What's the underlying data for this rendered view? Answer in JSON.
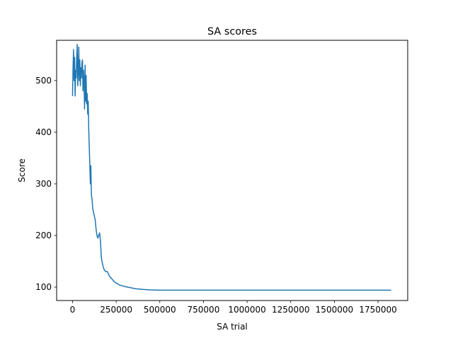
{
  "chart_data": {
    "type": "line",
    "title": "SA scores",
    "xlabel": "SA trial",
    "ylabel": "Score",
    "xlim": [
      -91000,
      1920000
    ],
    "ylim": [
      74,
      578
    ],
    "xticks": [
      0,
      250000,
      500000,
      750000,
      1000000,
      1250000,
      1500000,
      1750000
    ],
    "yticks": [
      100,
      200,
      300,
      400,
      500
    ],
    "grid": false,
    "line_color": "#1f77b4",
    "series": [
      {
        "x": [
          0,
          3000,
          6000,
          9000,
          12000,
          15000,
          18000,
          21000,
          24000,
          27000,
          30000,
          33000,
          36000,
          39000,
          42000,
          45000,
          48000,
          51000,
          54000,
          57000,
          60000,
          63000,
          66000,
          69000,
          72000,
          75000,
          78000,
          81000,
          84000,
          87000,
          90000,
          93000,
          96000,
          99000,
          102000,
          105000,
          108000,
          112000,
          116000,
          120000,
          125000,
          130000,
          135000,
          140000,
          145000,
          150000,
          155000,
          160000,
          165000,
          170000,
          175000,
          180000,
          185000,
          190000,
          200000,
          210000,
          220000,
          230000,
          240000,
          250000,
          260000,
          270000,
          280000,
          300000,
          330000,
          360000,
          400000,
          450000,
          500000,
          600000,
          800000,
          1000000,
          1250000,
          1500000,
          1700000,
          1825000
        ],
        "y": [
          470,
          525,
          560,
          500,
          545,
          470,
          520,
          505,
          545,
          570,
          490,
          520,
          565,
          500,
          540,
          490,
          525,
          505,
          535,
          540,
          480,
          520,
          500,
          445,
          530,
          460,
          510,
          455,
          475,
          435,
          460,
          405,
          370,
          340,
          300,
          335,
          280,
          270,
          252,
          245,
          238,
          230,
          212,
          200,
          195,
          200,
          205,
          190,
          158,
          148,
          140,
          135,
          132,
          130,
          130,
          122,
          118,
          114,
          110,
          108,
          106,
          104,
          103,
          101,
          99,
          97,
          95.5,
          94.5,
          94,
          94,
          94,
          94,
          94,
          94,
          94,
          94
        ]
      }
    ]
  }
}
